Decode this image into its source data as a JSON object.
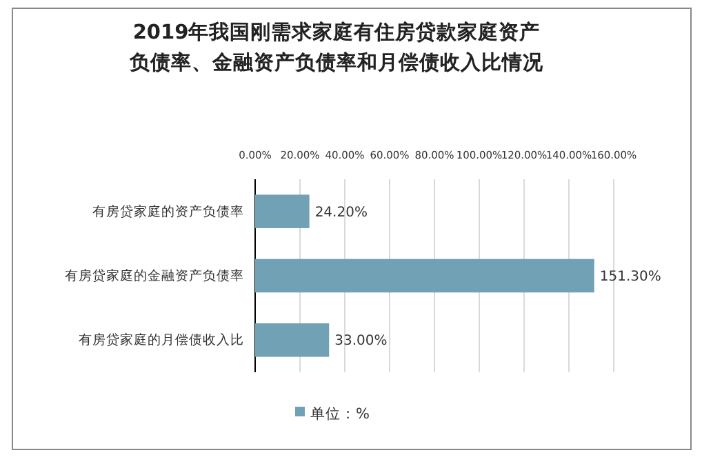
{
  "chart_data": {
    "type": "bar",
    "orientation": "horizontal",
    "title": "2019年我国刚需求家庭有住房贷款家庭资产负债率、金融资产负债率和月偿债收入比情况",
    "categories": [
      "有房贷家庭的资产负债率",
      "有房贷家庭的金融资产负债率",
      "有房贷家庭的月偿债收入比"
    ],
    "series": [
      {
        "name": "单位：%",
        "color": "#71a1b5",
        "values": [
          24.2,
          151.3,
          33.0
        ],
        "value_labels": [
          "24.20%",
          "151.30%",
          "33.00%"
        ]
      }
    ],
    "xlim": [
      0,
      160
    ],
    "xticks": [
      {
        "value": 0,
        "label": "0.00%"
      },
      {
        "value": 20,
        "label": "20.00%"
      },
      {
        "value": 40,
        "label": "40.00%"
      },
      {
        "value": 60,
        "label": "60.00%"
      },
      {
        "value": 80,
        "label": "80.00%"
      },
      {
        "value": 100,
        "label": "100.00%"
      },
      {
        "value": 120,
        "label": "120.00%"
      },
      {
        "value": 140,
        "label": "140.00%"
      },
      {
        "value": 160,
        "label": "160.00%"
      }
    ],
    "grid": "x",
    "legend": "bottom"
  }
}
